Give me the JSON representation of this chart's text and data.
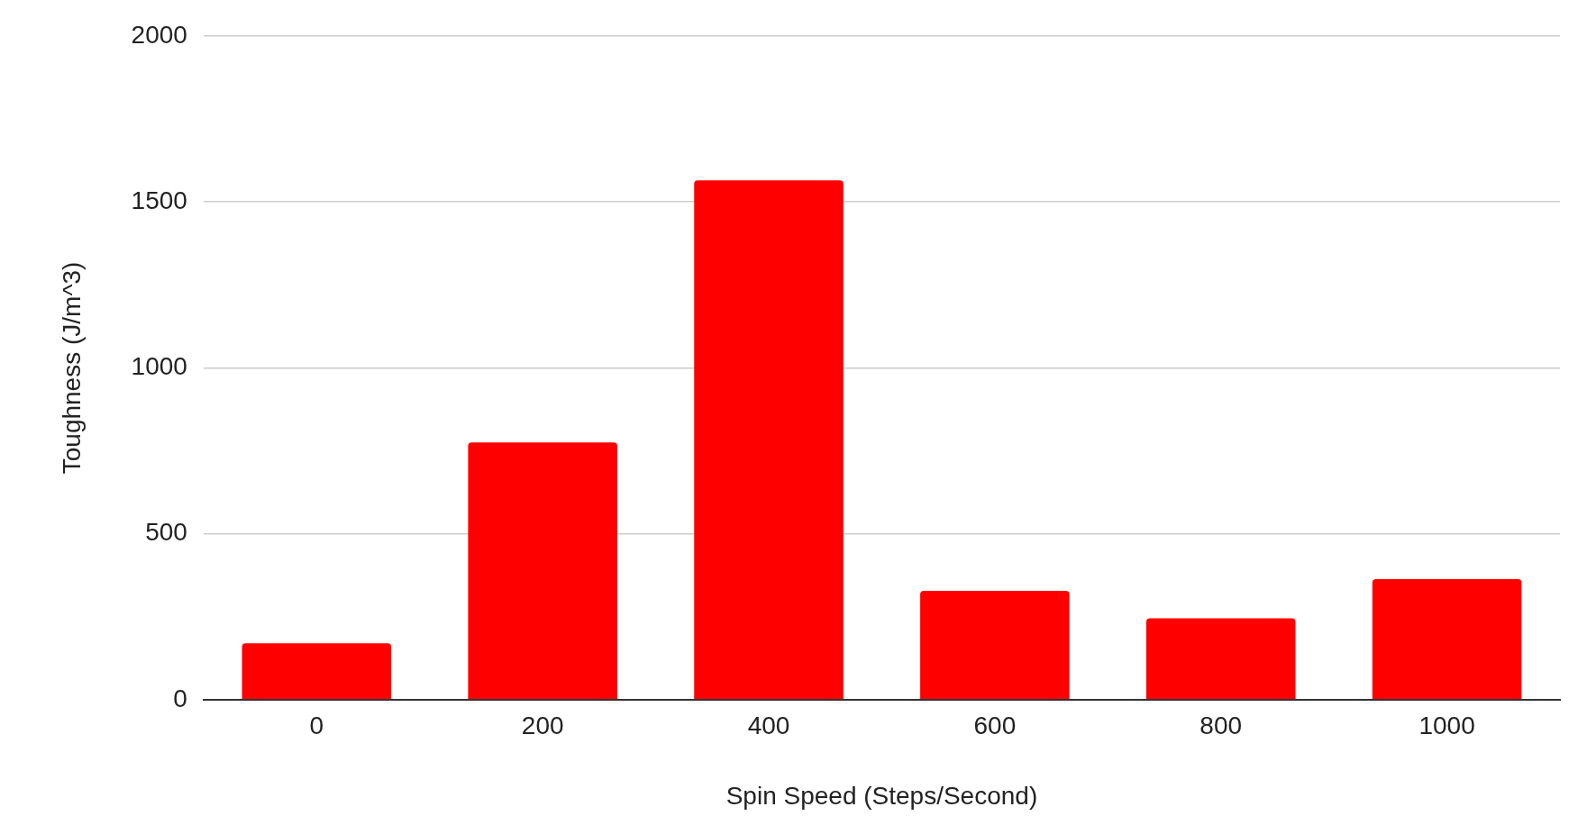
{
  "chart_data": {
    "type": "bar",
    "xlabel": "Spin Speed (Steps/Second)",
    "ylabel": "Toughness (J/m^3)",
    "categories": [
      "0",
      "200",
      "400",
      "600",
      "800",
      "1000"
    ],
    "values": [
      170,
      775,
      1565,
      328,
      245,
      363
    ],
    "color": "#ff0000",
    "ylim": [
      0,
      2000
    ],
    "yticks": [
      0,
      500,
      1000,
      1500,
      2000
    ],
    "grid": "y",
    "legend": false
  }
}
